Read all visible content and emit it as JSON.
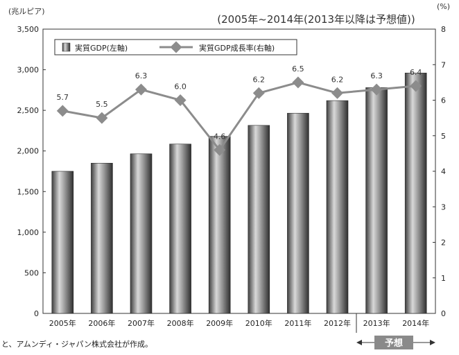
{
  "chart_data": {
    "type": "bar+line",
    "subtitle": "(2005年~2014年(2013年以降は予想値))",
    "categories": [
      "2005年",
      "2006年",
      "2007年",
      "2008年",
      "2009年",
      "2010年",
      "2011年",
      "2012年",
      "2013年",
      "2014年"
    ],
    "left_axis": {
      "unit": "(兆ルピア)",
      "ylim": [
        0,
        3500
      ],
      "ticks": [
        "0",
        "500",
        "1,000",
        "1,500",
        "2,000",
        "2,500",
        "3,000",
        "3,500"
      ]
    },
    "right_axis": {
      "unit": "(%)",
      "ylim": [
        0,
        8
      ],
      "ticks": [
        "0",
        "1",
        "2",
        "3",
        "4",
        "5",
        "6",
        "7",
        "8"
      ]
    },
    "series": [
      {
        "name": "実質GDP(左軸)",
        "type": "bar",
        "axis": "left",
        "values": [
          1750,
          1850,
          1965,
          2085,
          2180,
          2315,
          2465,
          2620,
          2780,
          2960
        ]
      },
      {
        "name": "実質GDP成長率(右軸)",
        "type": "line",
        "axis": "right",
        "values": [
          5.7,
          5.5,
          6.3,
          6.0,
          4.6,
          6.2,
          6.5,
          6.2,
          6.3,
          6.4
        ],
        "labels": [
          "5.7",
          "5.5",
          "6.3",
          "6.0",
          "4.6",
          "6.2",
          "6.5",
          "6.2",
          "6.3",
          "6.4"
        ]
      }
    ],
    "forecast_label": "予想",
    "forecast_from": "2013年",
    "source_note": "と、アムンディ・ジャパン株式会社が作成。",
    "colors": {
      "bar_dark": "#4a4a4a",
      "bar_light": "#d4d4d4",
      "line": "#8c8c8c",
      "marker": "#8c8c8c",
      "forecast_box": "#8a8a8a"
    }
  }
}
